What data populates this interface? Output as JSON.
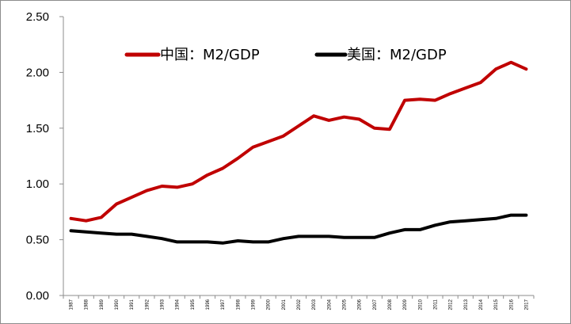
{
  "chart_data": {
    "type": "line",
    "title": "",
    "xlabel": "",
    "ylabel": "",
    "ylim": [
      0,
      2.5
    ],
    "y_ticks": [
      "0.00",
      "0.50",
      "1.00",
      "1.50",
      "2.00",
      "2.50"
    ],
    "grid": false,
    "legend_position": "top",
    "x": [
      "1987",
      "1988",
      "1989",
      "1990",
      "1991",
      "1992",
      "1993",
      "1994",
      "1995",
      "1996",
      "1997",
      "1998",
      "1999",
      "2000",
      "2001",
      "2002",
      "2003",
      "2004",
      "2005",
      "2006",
      "2007",
      "2008",
      "2009",
      "2010",
      "2011",
      "2012",
      "2013",
      "2014",
      "2015",
      "2016",
      "2017"
    ],
    "series": [
      {
        "name": "中国：M2/GDP",
        "color": "#c00000",
        "values": [
          0.69,
          0.67,
          0.7,
          0.82,
          0.88,
          0.94,
          0.98,
          0.97,
          1.0,
          1.08,
          1.14,
          1.23,
          1.33,
          1.38,
          1.43,
          1.52,
          1.61,
          1.57,
          1.6,
          1.58,
          1.5,
          1.49,
          1.75,
          1.76,
          1.75,
          1.81,
          1.86,
          1.91,
          2.03,
          2.09,
          2.03
        ]
      },
      {
        "name": "美国：M2/GDP",
        "color": "#000000",
        "values": [
          0.58,
          0.57,
          0.56,
          0.55,
          0.55,
          0.53,
          0.51,
          0.48,
          0.48,
          0.48,
          0.47,
          0.49,
          0.48,
          0.48,
          0.51,
          0.53,
          0.53,
          0.53,
          0.52,
          0.52,
          0.52,
          0.56,
          0.59,
          0.59,
          0.63,
          0.66,
          0.67,
          0.68,
          0.69,
          0.72,
          0.72
        ]
      }
    ]
  }
}
